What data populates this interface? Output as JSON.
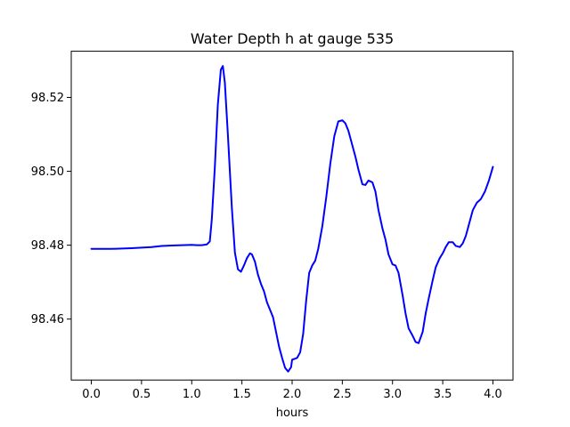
{
  "chart_data": {
    "type": "line",
    "title": "Water Depth h at gauge 535",
    "xlabel": "hours",
    "ylabel": "",
    "xlim": [
      -0.2,
      4.2
    ],
    "ylim": [
      98.4435,
      98.5325
    ],
    "xticks": [
      0.0,
      0.5,
      1.0,
      1.5,
      2.0,
      2.5,
      3.0,
      3.5,
      4.0
    ],
    "xtick_labels": [
      "0.0",
      "0.5",
      "1.0",
      "1.5",
      "2.0",
      "2.5",
      "3.0",
      "3.5",
      "4.0"
    ],
    "yticks": [
      98.46,
      98.48,
      98.5,
      98.52
    ],
    "ytick_labels": [
      "98.46",
      "98.48",
      "98.50",
      "98.52"
    ],
    "grid": false,
    "series": [
      {
        "color": "#0000ff",
        "x": [
          0.0,
          0.2,
          0.4,
          0.6,
          0.7,
          0.8,
          0.9,
          1.0,
          1.05,
          1.1,
          1.15,
          1.18,
          1.2,
          1.23,
          1.26,
          1.29,
          1.31,
          1.33,
          1.36,
          1.4,
          1.43,
          1.46,
          1.49,
          1.52,
          1.55,
          1.58,
          1.6,
          1.63,
          1.66,
          1.69,
          1.72,
          1.75,
          1.78,
          1.81,
          1.84,
          1.87,
          1.9,
          1.93,
          1.96,
          1.99,
          2.0,
          2.02,
          2.05,
          2.08,
          2.11,
          2.14,
          2.17,
          2.2,
          2.23,
          2.26,
          2.3,
          2.34,
          2.38,
          2.42,
          2.46,
          2.5,
          2.53,
          2.56,
          2.6,
          2.63,
          2.66,
          2.7,
          2.73,
          2.76,
          2.8,
          2.83,
          2.86,
          2.9,
          2.93,
          2.96,
          3.0,
          3.03,
          3.06,
          3.1,
          3.13,
          3.16,
          3.2,
          3.23,
          3.26,
          3.3,
          3.33,
          3.36,
          3.4,
          3.43,
          3.47,
          3.5,
          3.53,
          3.56,
          3.6,
          3.63,
          3.67,
          3.7,
          3.73,
          3.76,
          3.8,
          3.84,
          3.88,
          3.92,
          3.96,
          4.0
        ],
        "y": [
          98.479,
          98.479,
          98.4792,
          98.4795,
          98.4798,
          98.4799,
          98.48,
          98.4801,
          98.48,
          98.48,
          98.4802,
          98.481,
          98.487,
          98.501,
          98.518,
          98.5275,
          98.5285,
          98.524,
          98.51,
          98.49,
          98.478,
          98.4735,
          98.4728,
          98.4745,
          98.4765,
          98.4778,
          98.4775,
          98.4755,
          98.472,
          98.4695,
          98.4675,
          98.4645,
          98.4625,
          98.4605,
          98.4565,
          98.4525,
          98.4495,
          98.4468,
          98.4458,
          98.447,
          98.449,
          98.4492,
          98.4495,
          98.451,
          98.456,
          98.465,
          98.4725,
          98.4745,
          98.4758,
          98.479,
          98.485,
          98.493,
          98.502,
          98.5095,
          98.5135,
          98.5138,
          98.513,
          98.511,
          98.507,
          98.504,
          98.5005,
          98.4965,
          98.4963,
          98.4975,
          98.497,
          98.4945,
          98.4895,
          98.4845,
          98.4815,
          98.4775,
          98.4748,
          98.4745,
          98.4725,
          98.4665,
          98.4615,
          98.4575,
          98.4555,
          98.4538,
          98.4535,
          98.4565,
          98.4615,
          98.4655,
          98.4705,
          98.474,
          98.4765,
          98.4778,
          98.4795,
          98.4808,
          98.4808,
          98.4798,
          98.4795,
          98.4805,
          98.4825,
          98.4855,
          98.4895,
          98.4915,
          98.4925,
          98.4945,
          98.4975,
          98.5012
        ]
      }
    ]
  }
}
